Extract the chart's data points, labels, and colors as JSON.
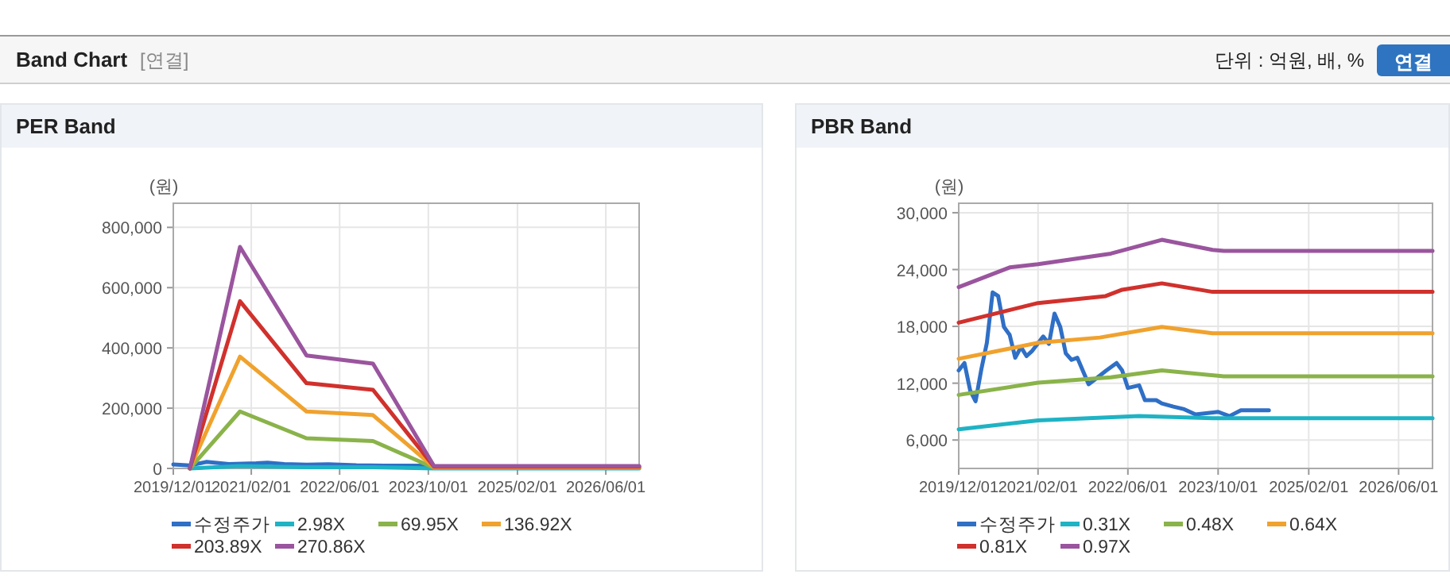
{
  "chart_data": [
    {
      "type": "other",
      "title": "Band Chart",
      "annotations": [
        "[연결]",
        "단위 : 억원, 배, %",
        "연결"
      ]
    },
    {
      "type": "line",
      "title": "PER Band",
      "ylabel": "(원)",
      "xlim": [
        "2019-12-01",
        "2026-12-01"
      ],
      "ylim": [
        0,
        880000
      ],
      "yticks": [
        {
          "value": 0,
          "label": "0"
        },
        {
          "value": 200000,
          "label": "200,000"
        },
        {
          "value": 400000,
          "label": "400,000"
        },
        {
          "value": 600000,
          "label": "600,000"
        },
        {
          "value": 800000,
          "label": "800,000"
        }
      ],
      "xticks": [
        {
          "value": "2019-12-01",
          "label": "2019/12/01"
        },
        {
          "value": "2021-02-01",
          "label": "2021/02/01"
        },
        {
          "value": "2022-06-01",
          "label": "2022/06/01"
        },
        {
          "value": "2023-10-01",
          "label": "2023/10/01"
        },
        {
          "value": "2025-02-01",
          "label": "2025/02/01"
        },
        {
          "value": "2026-06-01",
          "label": "2026/06/01"
        }
      ],
      "grid": true,
      "legend": "bottom",
      "marker": "none",
      "line_style": "solid",
      "series": [
        {
          "name": "수정주가",
          "color": "#2f6fc6",
          "x": [
            "2019-12",
            "2020-03",
            "2020-06",
            "2020-10",
            "2021-03",
            "2021-05",
            "2021-08",
            "2021-12",
            "2022-04",
            "2022-09",
            "2023-02",
            "2023-10"
          ],
          "values": [
            13346,
            10093,
            21589,
            14692,
            16934,
            19346,
            14467,
            12336,
            14131,
            10206,
            9533,
            8972
          ]
        },
        {
          "name": "2.98X",
          "color": "#1fb3c4",
          "x": [
            "2020-03",
            "2020-12",
            "2021-12",
            "2022-12",
            "2023-11",
            "2026-12"
          ],
          "values": [
            0,
            8000,
            4000,
            4000,
            100,
            100
          ]
        },
        {
          "name": "69.95X",
          "color": "#8ab34a",
          "x": [
            "2020-03",
            "2020-12",
            "2021-12",
            "2022-12",
            "2023-11",
            "2026-12"
          ],
          "values": [
            0,
            189000,
            100000,
            91000,
            2000,
            2000
          ]
        },
        {
          "name": "136.92X",
          "color": "#f0a22e",
          "x": [
            "2020-03",
            "2020-12",
            "2021-12",
            "2022-12",
            "2023-11",
            "2026-12"
          ],
          "values": [
            0,
            371000,
            189000,
            177000,
            4000,
            4000
          ]
        },
        {
          "name": "203.89X",
          "color": "#d0312d",
          "x": [
            "2020-03",
            "2020-12",
            "2021-12",
            "2022-12",
            "2023-11",
            "2026-12"
          ],
          "values": [
            0,
            555000,
            283000,
            261000,
            6000,
            6000
          ]
        },
        {
          "name": "270.86X",
          "color": "#9a559e",
          "x": [
            "2020-03",
            "2020-12",
            "2021-12",
            "2022-12",
            "2023-11",
            "2026-12"
          ],
          "values": [
            0,
            735000,
            375000,
            348000,
            8000,
            8000
          ]
        }
      ]
    },
    {
      "type": "line",
      "title": "PBR Band",
      "ylabel": "(원)",
      "xlim": [
        "2019-12-01",
        "2026-12-01"
      ],
      "ylim": [
        3000,
        31000
      ],
      "yticks": [
        {
          "value": 6000,
          "label": "6,000"
        },
        {
          "value": 12000,
          "label": "12,000"
        },
        {
          "value": 18000,
          "label": "18,000"
        },
        {
          "value": 24000,
          "label": "24,000"
        },
        {
          "value": 30000,
          "label": "30,000"
        }
      ],
      "xticks": [
        {
          "value": "2019-12-01",
          "label": "2019/12/01"
        },
        {
          "value": "2021-02-01",
          "label": "2021/02/01"
        },
        {
          "value": "2022-06-01",
          "label": "2022/06/01"
        },
        {
          "value": "2023-10-01",
          "label": "2023/10/01"
        },
        {
          "value": "2025-02-01",
          "label": "2025/02/01"
        },
        {
          "value": "2026-06-01",
          "label": "2026/06/01"
        }
      ],
      "grid": true,
      "legend": "bottom",
      "marker": "none",
      "line_style": "solid",
      "series": [
        {
          "name": "수정주가",
          "color": "#2f6fc6",
          "x": [
            "2019-12",
            "2020-01",
            "2020-02",
            "2020-03",
            "2020-04",
            "2020-05",
            "2020-06",
            "2020-07",
            "2020-08",
            "2020-09",
            "2020-10",
            "2020-11",
            "2020-12",
            "2021-01",
            "2021-03",
            "2021-04",
            "2021-05",
            "2021-06",
            "2021-07",
            "2021-08",
            "2021-09",
            "2021-11",
            "2021-12",
            "2022-02",
            "2022-04",
            "2022-05",
            "2022-06",
            "2022-08",
            "2022-09",
            "2022-11",
            "2022-12",
            "2023-02",
            "2023-04",
            "2023-06",
            "2023-10",
            "2023-12",
            "2024-02",
            "2024-07"
          ],
          "values": [
            13346,
            14131,
            11215,
            10093,
            13458,
            16262,
            21589,
            21196,
            17944,
            17103,
            14692,
            15813,
            14860,
            15421,
            16934,
            16150,
            19346,
            17944,
            15140,
            14467,
            14692,
            11888,
            12336,
            13290,
            14131,
            13346,
            11495,
            11776,
            10206,
            10206,
            9869,
            9533,
            9252,
            8692,
            8972,
            8523,
            9140,
            9140
          ]
        },
        {
          "name": "0.31X",
          "color": "#1fb3c4",
          "x": [
            "2019-12",
            "2021-02",
            "2022-08",
            "2023-09",
            "2026-12"
          ],
          "values": [
            7121,
            8075,
            8523,
            8300,
            8300
          ]
        },
        {
          "name": "0.48X",
          "color": "#8ab34a",
          "x": [
            "2019-12",
            "2021-02",
            "2022-03",
            "2022-12",
            "2023-11",
            "2026-12"
          ],
          "values": [
            10766,
            12056,
            12617,
            13346,
            12729,
            12729
          ]
        },
        {
          "name": "0.64X",
          "color": "#f0a22e",
          "x": [
            "2019-12",
            "2021-02",
            "2022-01",
            "2022-12",
            "2023-09",
            "2026-12"
          ],
          "values": [
            14580,
            16262,
            16822,
            17944,
            17271,
            17271
          ]
        },
        {
          "name": "0.81X",
          "color": "#d0312d",
          "x": [
            "2019-12",
            "2021-02",
            "2022-02",
            "2022-05",
            "2022-12",
            "2023-09",
            "2026-12"
          ],
          "values": [
            18393,
            20467,
            21196,
            21869,
            22542,
            21645,
            21645
          ]
        },
        {
          "name": "0.97X",
          "color": "#9a559e",
          "x": [
            "2019-12",
            "2020-09",
            "2021-02",
            "2022-03",
            "2022-12",
            "2023-09",
            "2023-11",
            "2026-12"
          ],
          "values": [
            22150,
            24224,
            24560,
            25680,
            27140,
            26075,
            25963,
            25963
          ]
        }
      ]
    }
  ]
}
